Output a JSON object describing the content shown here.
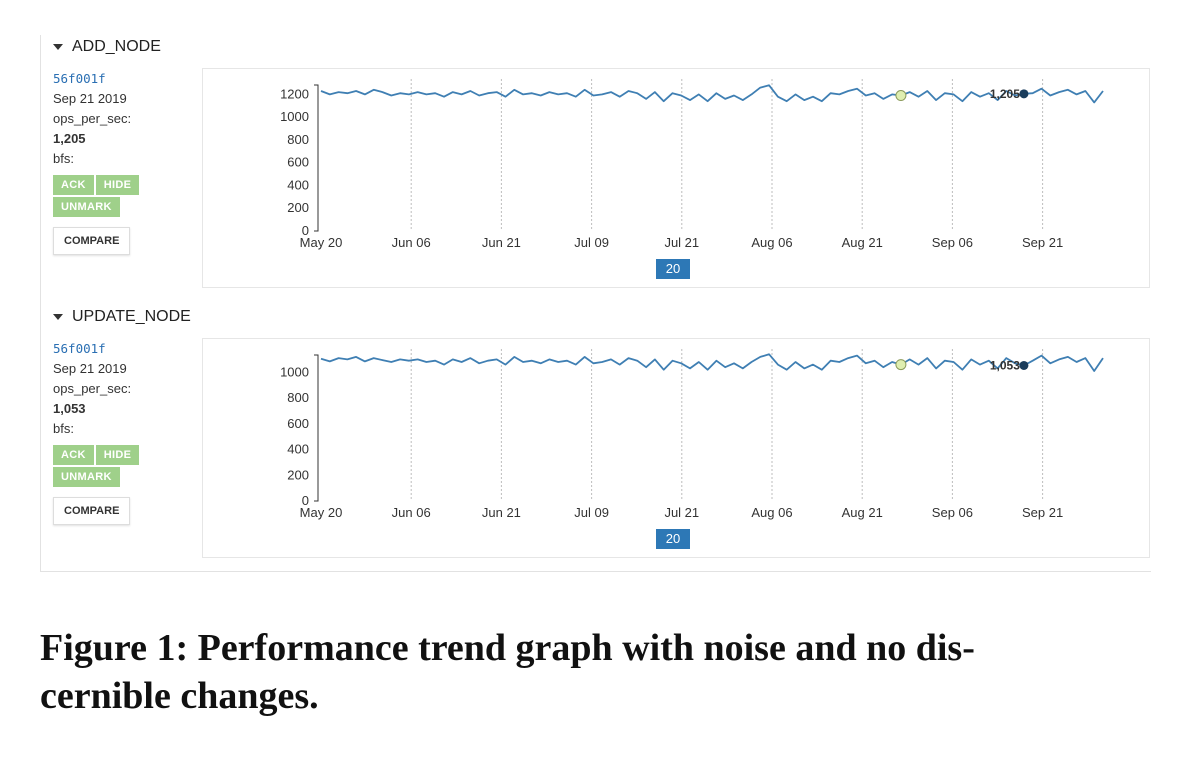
{
  "caption": {
    "line1": "Figure 1:  Performance trend graph with noise and no dis-",
    "line2": "cernible changes."
  },
  "panels": [
    {
      "title": "ADD_NODE",
      "revision": "56f001f",
      "date": "Sep 21 2019",
      "metric_label": "ops_per_sec:",
      "metric_value": "1,205",
      "bfs_label": "bfs:",
      "buttons": {
        "ack": "ACK",
        "hide": "HIDE",
        "unmark": "UNMARK",
        "compare": "COMPARE"
      },
      "badge": "20"
    },
    {
      "title": "UPDATE_NODE",
      "revision": "56f001f",
      "date": "Sep 21 2019",
      "metric_label": "ops_per_sec:",
      "metric_value": "1,053",
      "bfs_label": "bfs:",
      "buttons": {
        "ack": "ACK",
        "hide": "HIDE",
        "unmark": "UNMARK",
        "compare": "COMPARE"
      },
      "badge": "20"
    }
  ],
  "colors": {
    "line": "#3f7fb3",
    "highlight_fill": "#dfeeb0",
    "marker": "#1a3d5c",
    "accent_button": "#9fd08a",
    "badge": "#2d78b6"
  },
  "chart_data": [
    {
      "type": "line",
      "x_tick_labels": [
        "May 20",
        "Jun 06",
        "Jun 21",
        "Jul 09",
        "Jul 21",
        "Aug 06",
        "Aug 21",
        "Sep 06",
        "Sep 21"
      ],
      "ylim": [
        0,
        1300
      ],
      "y_ticks": [
        0,
        200,
        400,
        600,
        800,
        1000,
        1200
      ],
      "grid": "vertical dotted",
      "highlight_index": 66,
      "marker_index": 80,
      "marker_label": "1,205",
      "series": [
        {
          "values": [
            1230,
            1200,
            1220,
            1210,
            1230,
            1200,
            1240,
            1220,
            1190,
            1210,
            1200,
            1220,
            1200,
            1210,
            1180,
            1220,
            1200,
            1230,
            1190,
            1210,
            1220,
            1180,
            1240,
            1200,
            1210,
            1190,
            1220,
            1200,
            1210,
            1180,
            1240,
            1190,
            1200,
            1220,
            1180,
            1230,
            1210,
            1160,
            1220,
            1140,
            1210,
            1190,
            1150,
            1200,
            1140,
            1210,
            1160,
            1190,
            1150,
            1200,
            1260,
            1280,
            1180,
            1140,
            1200,
            1150,
            1180,
            1140,
            1210,
            1200,
            1230,
            1250,
            1190,
            1210,
            1160,
            1200,
            1190,
            1220,
            1180,
            1230,
            1150,
            1210,
            1200,
            1140,
            1220,
            1180,
            1210,
            1150,
            1230,
            1190,
            1205,
            1210,
            1250,
            1190,
            1220,
            1240,
            1200,
            1230,
            1130,
            1230
          ]
        }
      ]
    },
    {
      "type": "line",
      "x_tick_labels": [
        "May 20",
        "Jun 06",
        "Jun 21",
        "Jul 09",
        "Jul 21",
        "Aug 06",
        "Aug 21",
        "Sep 06",
        "Sep 21"
      ],
      "ylim": [
        0,
        1150
      ],
      "y_ticks": [
        0,
        200,
        400,
        600,
        800,
        1000
      ],
      "grid": "vertical dotted",
      "highlight_index": 66,
      "marker_index": 80,
      "marker_label": "1,053",
      "series": [
        {
          "values": [
            1105,
            1085,
            1110,
            1100,
            1120,
            1085,
            1110,
            1095,
            1080,
            1100,
            1090,
            1100,
            1080,
            1090,
            1060,
            1100,
            1080,
            1110,
            1070,
            1090,
            1100,
            1060,
            1120,
            1080,
            1090,
            1070,
            1100,
            1080,
            1090,
            1060,
            1120,
            1070,
            1080,
            1100,
            1060,
            1110,
            1090,
            1040,
            1100,
            1020,
            1090,
            1070,
            1030,
            1080,
            1020,
            1090,
            1040,
            1070,
            1030,
            1080,
            1120,
            1140,
            1060,
            1020,
            1080,
            1030,
            1060,
            1020,
            1090,
            1080,
            1110,
            1130,
            1070,
            1090,
            1040,
            1080,
            1060,
            1100,
            1060,
            1110,
            1030,
            1090,
            1080,
            1020,
            1100,
            1060,
            1090,
            1030,
            1110,
            1070,
            1053,
            1090,
            1130,
            1070,
            1100,
            1120,
            1080,
            1110,
            1010,
            1110
          ]
        }
      ]
    }
  ]
}
